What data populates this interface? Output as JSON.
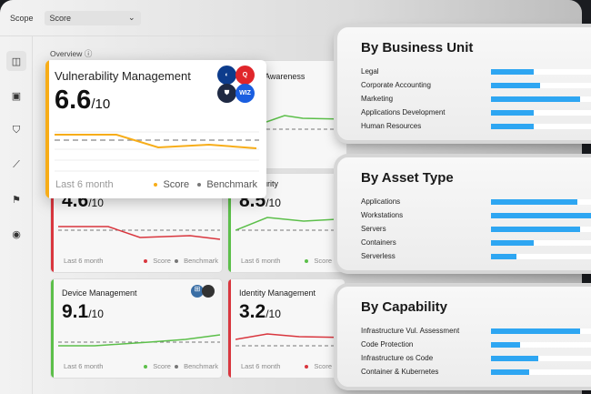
{
  "topbar": {
    "scope_label": "Scope",
    "scope_value": "Score"
  },
  "overview": {
    "title": "Overview"
  },
  "featured": {
    "title": "Vulnerability Management",
    "score": "6.6",
    "out_of": "/10",
    "period": "Last 6 month",
    "legend_score": "Score",
    "legend_benchmark": "Benchmark",
    "color": "#f7ad19",
    "logos": [
      "circle-logo",
      "q-logo",
      "shield-logo",
      "wiz"
    ],
    "wiz_text": "WIZ"
  },
  "cards": [
    {
      "title": "Awareness",
      "score": "",
      "out_of": "10",
      "period": "onth",
      "legend_score": "Score",
      "color": "#5cbf4a"
    },
    {
      "title": "",
      "score": "4.6",
      "out_of": "/10",
      "period": "Last 6 month",
      "legend_score": "Score",
      "legend_benchmark": "Benchmark",
      "color": "#d9363e"
    },
    {
      "title": "urity",
      "score": "8.5",
      "out_of": "/10",
      "period": "Last 6 month",
      "legend_score": "Score",
      "color": "#5cbf4a"
    },
    {
      "title": "Device Management",
      "score": "9.1",
      "out_of": "/10",
      "period": "Last 6 month",
      "legend_score": "Score",
      "legend_benchmark": "Benchmark",
      "color": "#5cbf4a"
    },
    {
      "title": "Identity Management",
      "score": "3.2",
      "out_of": "/10",
      "period": "Last 6 month",
      "legend_score": "Score",
      "color": "#d9363e"
    }
  ],
  "panels": [
    {
      "title": "By Business Unit",
      "rows": [
        {
          "label": "Legal",
          "pct": 39
        },
        {
          "label": "Corporate Accounting",
          "pct": 45
        },
        {
          "label": "Marketing",
          "pct": 82
        },
        {
          "label": "Applications Development",
          "pct": 39
        },
        {
          "label": "Human Resources",
          "pct": 39
        }
      ]
    },
    {
      "title": "By Asset Type",
      "rows": [
        {
          "label": "Applications",
          "pct": 79
        },
        {
          "label": "Workstations",
          "pct": 100
        },
        {
          "label": "Servers",
          "pct": 82
        },
        {
          "label": "Containers",
          "pct": 39
        },
        {
          "label": "Serverless",
          "pct": 23
        }
      ]
    },
    {
      "title": "By Capability",
      "rows": [
        {
          "label": "Infrastructure Vul. Assessment",
          "pct": 82
        },
        {
          "label": "Code Protection",
          "pct": 27
        },
        {
          "label": "Infrastructure os Code",
          "pct": 43
        },
        {
          "label": "Container & Kubernetes",
          "pct": 35
        }
      ]
    }
  ],
  "colors": {
    "bar": "#2ea6f2",
    "accent": "#f7ad19"
  }
}
